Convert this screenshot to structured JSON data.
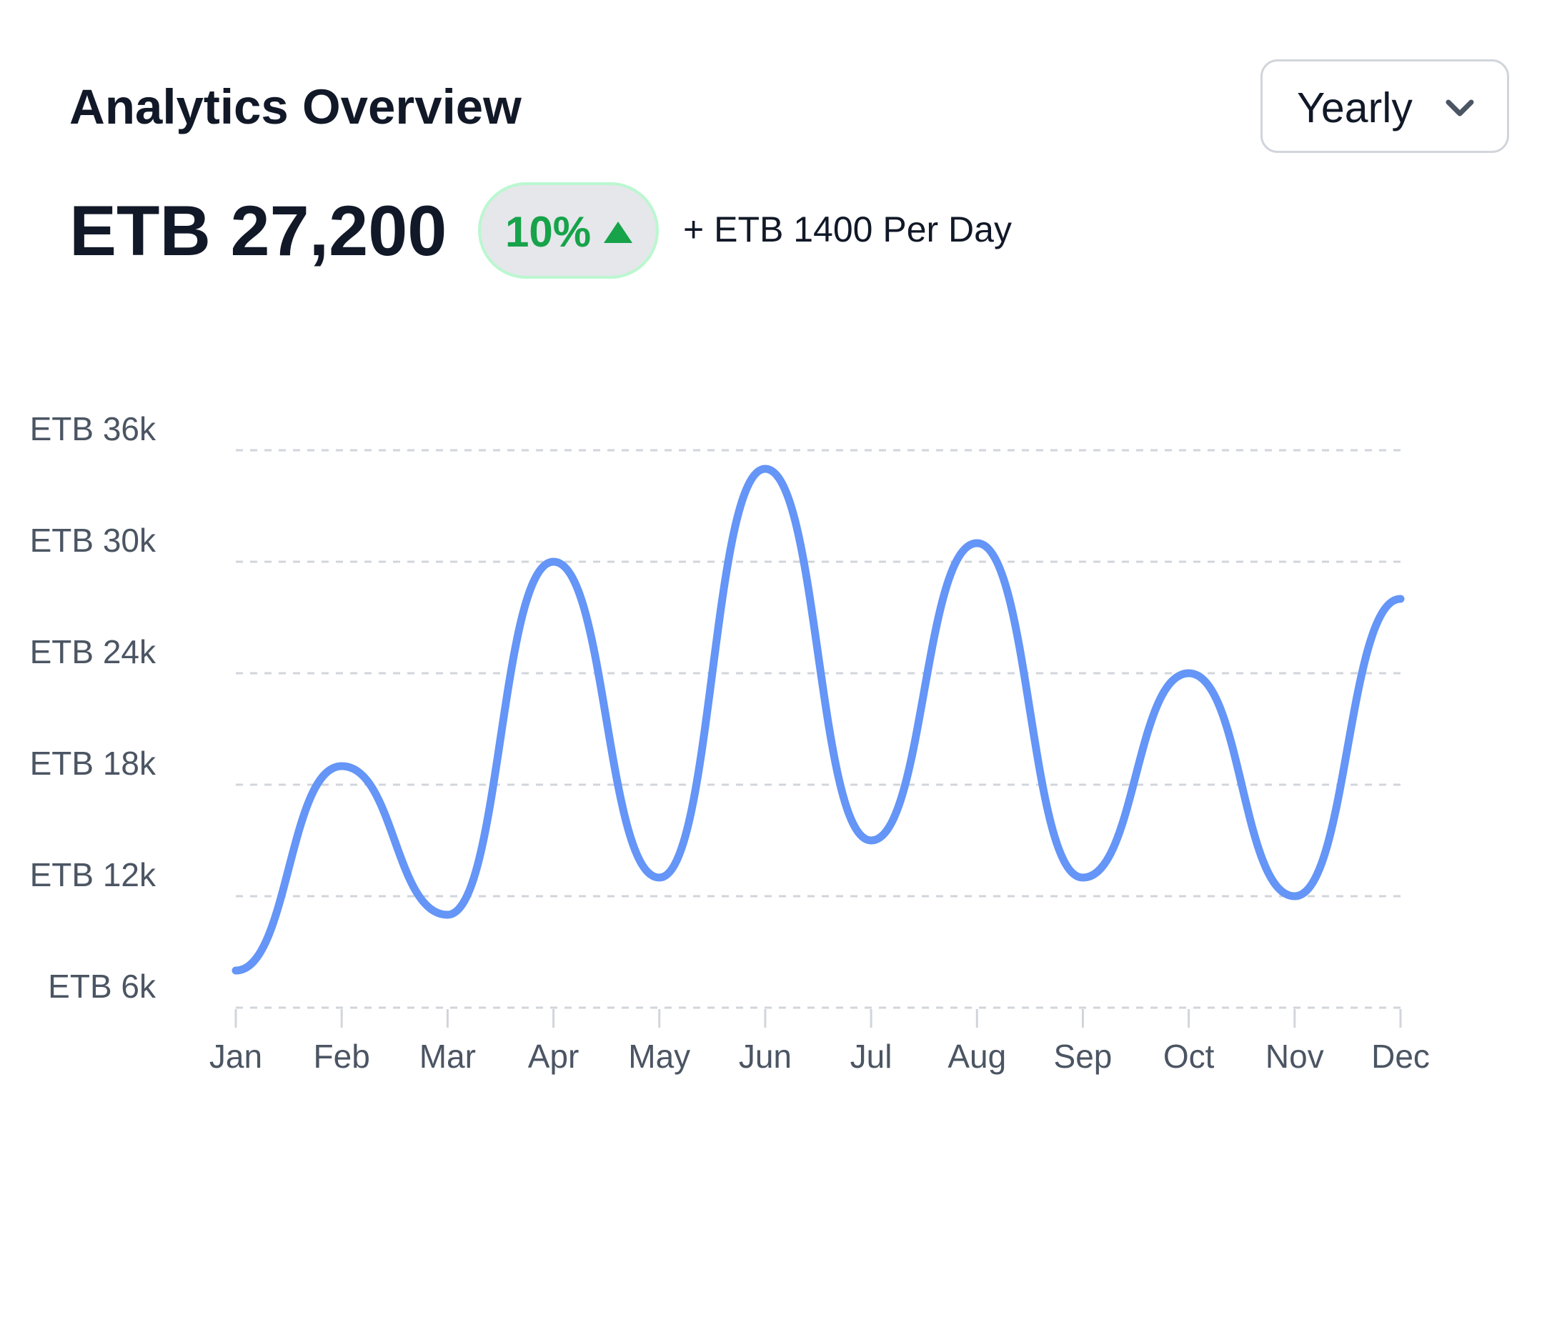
{
  "header": {
    "title": "Analytics Overview",
    "period_selector": {
      "value": "Yearly",
      "icon": "chevron-down-icon"
    }
  },
  "summary": {
    "total": "ETB 27,200",
    "change_badge": {
      "value": "10%",
      "icon": "triangle-up-icon",
      "color": "#16a34a"
    },
    "per_day": "+ ETB 1400 Per Day"
  },
  "colors": {
    "line": "#6495f7",
    "grid": "#d1d5db",
    "axis_text": "#4b5563"
  },
  "chart_data": {
    "type": "line",
    "categories": [
      "Jan",
      "Feb",
      "Mar",
      "Apr",
      "May",
      "Jun",
      "Jul",
      "Aug",
      "Sep",
      "Oct",
      "Nov",
      "Dec"
    ],
    "series": [
      {
        "values": [
          8000,
          19000,
          11000,
          30000,
          13000,
          35000,
          15000,
          31000,
          13000,
          24000,
          12000,
          28000
        ]
      }
    ],
    "ylim": [
      6000,
      36000
    ],
    "y_ticks": [
      6000,
      12000,
      18000,
      24000,
      30000,
      36000
    ],
    "y_tick_labels": [
      "ETB 6k",
      "ETB 12k",
      "ETB 18k",
      "ETB 24k",
      "ETB 30k",
      "ETB 36k"
    ],
    "grid": true,
    "legend": "none",
    "smooth": true
  }
}
